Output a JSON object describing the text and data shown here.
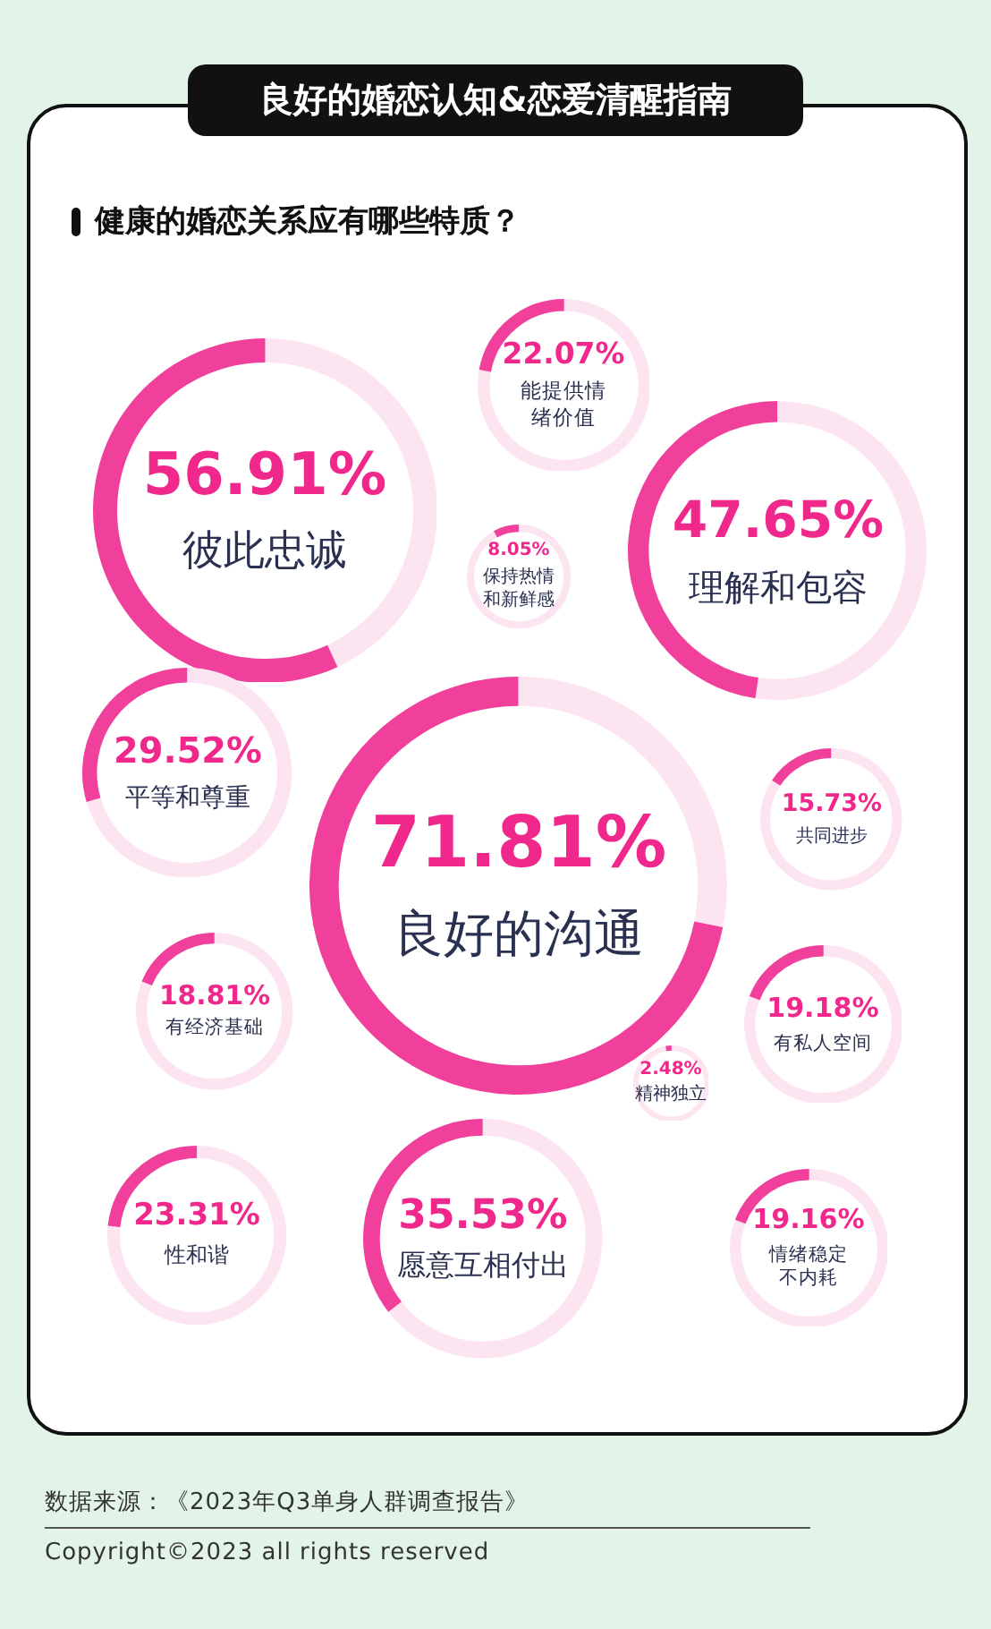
{
  "chart_data": {
    "type": "other",
    "title": "良好的婚恋认知&恋爱清醒指南",
    "subtitle": "健康的婚恋关系应有哪些特质？",
    "categories": [
      "彼此忠诚",
      "能提供情绪价值",
      "保持热情和新鲜感",
      "理解和包容",
      "平等和尊重",
      "良好的沟通",
      "共同进步",
      "有经济基础",
      "有私人空间",
      "精神独立",
      "性和谐",
      "愿意互相付出",
      "情绪稳定不内耗"
    ],
    "values": [
      56.91,
      22.07,
      8.05,
      47.65,
      29.52,
      71.81,
      15.73,
      18.81,
      19.18,
      2.48,
      23.31,
      35.53,
      19.16
    ],
    "value_labels": [
      "56.91%",
      "22.07%",
      "8.05%",
      "47.65%",
      "29.52%",
      "71.81%",
      "15.73%",
      "18.81%",
      "19.18%",
      "2.48%",
      "23.31%",
      "35.53%",
      "19.16%"
    ],
    "color": "#f0409c",
    "annotations": [
      "数据来源：《2023年Q3单身人群调查报告》",
      "Copyright©2023 all rights reserved"
    ]
  }
}
